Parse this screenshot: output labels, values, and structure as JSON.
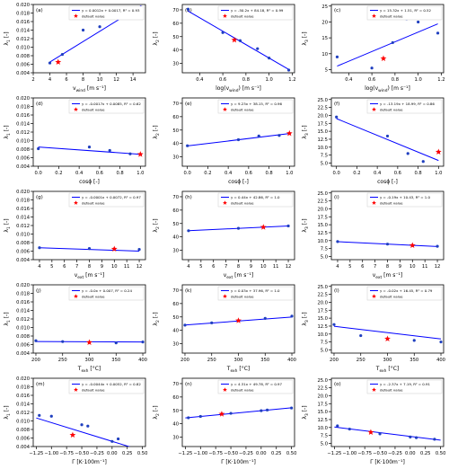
{
  "colors": {
    "points": "#1f3fbf",
    "fit": "#0000ff",
    "default": "#ff0000",
    "axis": "#000000"
  },
  "legend_default_label": "default value",
  "chart_data": [
    {
      "panel": "(a)",
      "type": "scatter",
      "xlabel": "v_wind [m s⁻¹]",
      "xlabel_main": "v",
      "xlabel_sub": "wind",
      "xlabel_unit": " [m s⁻¹]",
      "ylabel": "λ1 [-]",
      "ylabel_sub": "1",
      "xlim": [
        2,
        15.5
      ],
      "ylim": [
        0.004,
        0.02
      ],
      "xticks": [
        2,
        4,
        6,
        8,
        10,
        12,
        14
      ],
      "yticks": [
        0.004,
        0.006,
        0.008,
        0.01,
        0.012,
        0.014,
        0.016,
        0.018,
        0.02
      ],
      "yticklabels": [
        "0.004",
        "0.006",
        "0.008",
        "0.010",
        "0.012",
        "0.014",
        "0.016",
        "0.018",
        "0.020"
      ],
      "points": [
        [
          4,
          0.0063
        ],
        [
          5.5,
          0.0083
        ],
        [
          8,
          0.014
        ],
        [
          10,
          0.0148
        ],
        [
          15,
          0.0183
        ]
      ],
      "default": [
        5,
        0.0065
      ],
      "fit": {
        "x": [
          4,
          15
        ],
        "y": [
          0.00652,
          0.01972
        ]
      },
      "fit_label": "y = 0.0012x + 0.0017, R² = 0.93",
      "legend": "top"
    },
    {
      "panel": "(b)",
      "type": "scatter",
      "xlabel": "log(v_wind) [m s⁻¹]",
      "xlabel_main": "log(v",
      "xlabel_sub": "wind",
      "xlabel_unit": ") [m s⁻¹]",
      "ylabel": "λ2 [-]",
      "ylabel_sub": "2",
      "xlim": [
        0.25,
        1.22
      ],
      "ylim": [
        23,
        74
      ],
      "xticks": [
        0.4,
        0.6,
        0.8,
        1.0,
        1.2
      ],
      "yticks": [
        30,
        40,
        50,
        60,
        70
      ],
      "yticklabels": [
        "30",
        "40",
        "50",
        "60",
        "70"
      ],
      "points": [
        [
          0.3,
          70.5
        ],
        [
          0.6,
          53
        ],
        [
          0.75,
          47
        ],
        [
          0.9,
          41
        ],
        [
          1.0,
          34
        ],
        [
          1.17,
          25
        ]
      ],
      "default": [
        0.7,
        47.5
      ],
      "fit": {
        "x": [
          0.3,
          1.17
        ],
        "y": [
          69.12,
          25.45
        ]
      },
      "fit_label": "y = -50.2x + 84.18, R² = 0.99",
      "legend": "top"
    },
    {
      "panel": "(c)",
      "type": "scatter",
      "xlabel": "log(v_wind) [m s⁻¹]",
      "xlabel_main": "log(v",
      "xlabel_sub": "wind",
      "xlabel_unit": ") [m s⁻¹]",
      "ylabel": "λ3 [-]",
      "ylabel_sub": "3",
      "xlim": [
        0.25,
        1.22
      ],
      "ylim": [
        4,
        25.5
      ],
      "xticks": [
        0.4,
        0.6,
        0.8,
        1.0,
        1.2
      ],
      "yticks": [
        5,
        10,
        15,
        20,
        25
      ],
      "yticklabels": [
        "5",
        "10",
        "15",
        "20",
        "25"
      ],
      "points": [
        [
          0.3,
          9
        ],
        [
          0.6,
          5.5
        ],
        [
          0.78,
          13.5
        ],
        [
          0.9,
          21
        ],
        [
          1.0,
          20
        ],
        [
          1.17,
          16.5
        ]
      ],
      "default": [
        0.7,
        8.5
      ],
      "fit": {
        "x": [
          0.3,
          1.17
        ],
        "y": [
          6.1,
          19.41
        ]
      },
      "fit_label": "y = 15.32x + 1.51, R² = 0.52",
      "legend": "top"
    },
    {
      "panel": "(d)",
      "type": "scatter",
      "xlabel": "cosϕ [-]",
      "xlabel_main": "cosϕ [-]",
      "xlabel_sub": "",
      "xlabel_unit": "",
      "ylabel": "λ1 [-]",
      "ylabel_sub": "1",
      "xlim": [
        -0.05,
        1.05
      ],
      "ylim": [
        0.004,
        0.02
      ],
      "xticks": [
        0.0,
        0.2,
        0.4,
        0.6,
        0.8,
        1.0
      ],
      "yticks": [
        0.004,
        0.006,
        0.008,
        0.01,
        0.012,
        0.014,
        0.016,
        0.018,
        0.02
      ],
      "yticklabels": [
        "0.004",
        "0.006",
        "0.008",
        "0.010",
        "0.012",
        "0.014",
        "0.016",
        "0.018",
        "0.020"
      ],
      "points": [
        [
          0.0,
          0.0081
        ],
        [
          0.5,
          0.0085
        ],
        [
          0.7,
          0.0077
        ],
        [
          0.9,
          0.0069
        ],
        [
          1.0,
          0.0068
        ]
      ],
      "default": [
        1.0,
        0.0068
      ],
      "fit": {
        "x": [
          0.0,
          1.0
        ],
        "y": [
          0.0085,
          0.0068
        ]
      },
      "fit_label": "y = -0.0017x + 0.0085, R² = 0.62",
      "legend": "top"
    },
    {
      "panel": "(e)",
      "type": "scatter",
      "xlabel": "cosϕ [-]",
      "xlabel_main": "cosϕ [-]",
      "xlabel_sub": "",
      "xlabel_unit": "",
      "ylabel": "λ2 [-]",
      "ylabel_sub": "2",
      "xlim": [
        -0.05,
        1.05
      ],
      "ylim": [
        23,
        74
      ],
      "xticks": [
        0.0,
        0.2,
        0.4,
        0.6,
        0.8,
        1.0
      ],
      "yticks": [
        30,
        40,
        50,
        60,
        70
      ],
      "yticklabels": [
        "30",
        "40",
        "50",
        "60",
        "70"
      ],
      "points": [
        [
          0.0,
          38.3
        ],
        [
          0.5,
          42.8
        ],
        [
          0.7,
          45.6
        ],
        [
          0.9,
          46
        ],
        [
          1.0,
          47.5
        ]
      ],
      "default": [
        1.0,
        47.5
      ],
      "fit": {
        "x": [
          0.0,
          1.0
        ],
        "y": [
          38.15,
          47.38
        ]
      },
      "fit_label": "y = 9.23x + 38.15, R² = 0.96",
      "legend": "top"
    },
    {
      "panel": "(f)",
      "type": "scatter",
      "xlabel": "cosϕ [-]",
      "xlabel_main": "cosϕ [-]",
      "xlabel_sub": "",
      "xlabel_unit": "",
      "ylabel": "λ3 [-]",
      "ylabel_sub": "3",
      "xlim": [
        -0.05,
        1.05
      ],
      "ylim": [
        4,
        25.5
      ],
      "xticks": [
        0.0,
        0.2,
        0.4,
        0.6,
        0.8,
        1.0
      ],
      "yticks": [
        5.0,
        7.5,
        10.0,
        12.5,
        15.0,
        17.5,
        20.0,
        22.5,
        25.0
      ],
      "yticklabels": [
        "5.0",
        "7.5",
        "10.0",
        "12.5",
        "15.0",
        "17.5",
        "20.0",
        "22.5",
        "25.0"
      ],
      "points": [
        [
          0.0,
          19.5
        ],
        [
          0.5,
          13.5
        ],
        [
          0.7,
          8
        ],
        [
          0.85,
          5.5
        ],
        [
          1.0,
          8.5
        ]
      ],
      "default": [
        1.0,
        8.5
      ],
      "fit": {
        "x": [
          0.0,
          1.0
        ],
        "y": [
          18.99,
          5.8
        ]
      },
      "fit_label": "y = -13.19x + 18.99, R² = 0.86",
      "legend": "top"
    },
    {
      "panel": "(g)",
      "type": "scatter",
      "xlabel": "v_ext [m s⁻¹]",
      "xlabel_main": "v",
      "xlabel_sub": "ext",
      "xlabel_unit": " [m s⁻¹]",
      "ylabel": "λ1 [-]",
      "ylabel_sub": "1",
      "xlim": [
        3.5,
        12.5
      ],
      "ylim": [
        0.004,
        0.02
      ],
      "xticks": [
        4,
        5,
        6,
        7,
        8,
        9,
        10,
        11,
        12
      ],
      "yticks": [
        0.004,
        0.006,
        0.008,
        0.01,
        0.012,
        0.014,
        0.016,
        0.018,
        0.02
      ],
      "yticklabels": [
        "0.004",
        "0.006",
        "0.008",
        "0.010",
        "0.012",
        "0.014",
        "0.016",
        "0.018",
        "0.020"
      ],
      "points": [
        [
          4,
          0.0068
        ],
        [
          8,
          0.0066
        ],
        [
          10,
          0.0065
        ],
        [
          12,
          0.0064
        ]
      ],
      "default": [
        10,
        0.0065
      ],
      "fit": {
        "x": [
          4,
          12
        ],
        "y": [
          0.0068,
          0.006
        ]
      },
      "fit_label": "y = -0.0001x + 0.0072, R² = 0.97",
      "legend": "top"
    },
    {
      "panel": "(h)",
      "type": "scatter",
      "xlabel": "v_ext [m s⁻¹]",
      "xlabel_main": "v",
      "xlabel_sub": "ext",
      "xlabel_unit": " [m s⁻¹]",
      "ylabel": "λ2 [-]",
      "ylabel_sub": "2",
      "xlim": [
        3.5,
        12.5
      ],
      "ylim": [
        23,
        74
      ],
      "xticks": [
        4,
        5,
        6,
        7,
        8,
        9,
        10,
        11,
        12
      ],
      "yticks": [
        30,
        40,
        50,
        60,
        70
      ],
      "yticklabels": [
        "30",
        "40",
        "50",
        "60",
        "70"
      ],
      "points": [
        [
          4,
          44.6
        ],
        [
          8,
          46.4
        ],
        [
          10,
          47.3
        ],
        [
          12,
          48.2
        ]
      ],
      "default": [
        10,
        47.3
      ],
      "fit": {
        "x": [
          4,
          12
        ],
        "y": [
          44.62,
          48.14
        ]
      },
      "fit_label": "y = 0.44x + 42.86, R² = 1.0",
      "legend": "top"
    },
    {
      "panel": "(i)",
      "type": "scatter",
      "xlabel": "v_ext [m s⁻¹]",
      "xlabel_main": "v",
      "xlabel_sub": "ext",
      "xlabel_unit": " [m s⁻¹]",
      "ylabel": "λ3 [-]",
      "ylabel_sub": "3",
      "xlim": [
        3.5,
        12.5
      ],
      "ylim": [
        4,
        25.5
      ],
      "xticks": [
        4,
        5,
        6,
        7,
        8,
        9,
        10,
        11,
        12
      ],
      "yticks": [
        5.0,
        7.5,
        10.0,
        12.5,
        15.0,
        17.5,
        20.0,
        22.5,
        25.0
      ],
      "yticklabels": [
        "5.0",
        "7.5",
        "10.0",
        "12.5",
        "15.0",
        "17.5",
        "20.0",
        "22.5",
        "25.0"
      ],
      "points": [
        [
          4,
          9.7
        ],
        [
          8,
          8.9
        ],
        [
          10,
          8.5
        ],
        [
          12,
          8.2
        ]
      ],
      "default": [
        10,
        8.5
      ],
      "fit": {
        "x": [
          4,
          12
        ],
        "y": [
          9.67,
          8.15
        ]
      },
      "fit_label": "y = -0.19x + 10.43, R² = 1.0",
      "legend": "top"
    },
    {
      "panel": "(j)",
      "type": "scatter",
      "xlabel": "T_exh [°C]",
      "xlabel_main": "T",
      "xlabel_sub": "exh",
      "xlabel_unit": " [°C]",
      "ylabel": "λ1 [-]",
      "ylabel_sub": "1",
      "xlim": [
        195,
        405
      ],
      "ylim": [
        0.004,
        0.02
      ],
      "xticks": [
        200,
        250,
        300,
        350,
        400
      ],
      "yticks": [
        0.004,
        0.006,
        0.008,
        0.01,
        0.012,
        0.014,
        0.016,
        0.018,
        0.02
      ],
      "yticklabels": [
        "0.004",
        "0.006",
        "0.008",
        "0.010",
        "0.012",
        "0.014",
        "0.016",
        "0.018",
        "0.020"
      ],
      "points": [
        [
          200,
          0.0069
        ],
        [
          250,
          0.0067
        ],
        [
          300,
          0.0065
        ],
        [
          350,
          0.0064
        ],
        [
          400,
          0.0066
        ]
      ],
      "default": [
        300,
        0.0065
      ],
      "fit": {
        "x": [
          200,
          400
        ],
        "y": [
          0.0067,
          0.0066
        ]
      },
      "fit_label": "y = -0.0x + 0.007, R² = 0.24",
      "legend": "top"
    },
    {
      "panel": "(k)",
      "type": "scatter",
      "xlabel": "T_exh [°C]",
      "xlabel_main": "T",
      "xlabel_sub": "exh",
      "xlabel_unit": " [°C]",
      "ylabel": "λ2 [-]",
      "ylabel_sub": "2",
      "xlim": [
        195,
        405
      ],
      "ylim": [
        23,
        74
      ],
      "xticks": [
        200,
        250,
        300,
        350,
        400
      ],
      "yticks": [
        30,
        40,
        50,
        60,
        70
      ],
      "yticklabels": [
        "30",
        "40",
        "50",
        "60",
        "70"
      ],
      "points": [
        [
          200,
          43.9
        ],
        [
          250,
          45.6
        ],
        [
          300,
          47.3
        ],
        [
          350,
          48.9
        ],
        [
          400,
          50.6
        ]
      ],
      "default": [
        300,
        47.3
      ],
      "fit": {
        "x": [
          200,
          400
        ],
        "y": [
          43.96,
          49.96
        ]
      },
      "fit_label": "y = 0.03x + 37.96, R² = 1.0",
      "legend": "top"
    },
    {
      "panel": "(l)",
      "type": "scatter",
      "xlabel": "T_exh [°C]",
      "xlabel_main": "T",
      "xlabel_sub": "exh",
      "xlabel_unit": " [°C]",
      "ylabel": "λ3 [-]",
      "ylabel_sub": "3",
      "xlim": [
        195,
        405
      ],
      "ylim": [
        4,
        25.5
      ],
      "xticks": [
        200,
        250,
        300,
        350,
        400
      ],
      "yticks": [
        5.0,
        7.5,
        10.0,
        12.5,
        15.0,
        17.5,
        20.0,
        22.5,
        25.0
      ],
      "yticklabels": [
        "5.0",
        "7.5",
        "10.0",
        "12.5",
        "15.0",
        "17.5",
        "20.0",
        "22.5",
        "25.0"
      ],
      "points": [
        [
          200,
          13
        ],
        [
          250,
          9.5
        ],
        [
          300,
          8.5
        ],
        [
          350,
          8
        ],
        [
          400,
          7.5
        ]
      ],
      "default": [
        300,
        8.5
      ],
      "fit": {
        "x": [
          200,
          400
        ],
        "y": [
          12.45,
          8.45
        ]
      },
      "fit_label": "y = -0.02x + 16.45, R² = 0.79",
      "legend": "top"
    },
    {
      "panel": "(m)",
      "type": "scatter",
      "xlabel": "Γ [K·100m⁻¹]",
      "xlabel_main": "Γ [K·100m⁻¹]",
      "xlabel_sub": "",
      "xlabel_unit": "",
      "ylabel": "λ1 [-]",
      "ylabel_sub": "1",
      "xlim": [
        -1.3,
        0.55
      ],
      "ylim": [
        0.004,
        0.02
      ],
      "xticks": [
        -1.25,
        -1.0,
        -0.75,
        -0.5,
        -0.25,
        0.0,
        0.25,
        0.5
      ],
      "yticks": [
        0.004,
        0.006,
        0.008,
        0.01,
        0.012,
        0.014,
        0.016,
        0.018,
        0.02
      ],
      "yticklabels": [
        "0.004",
        "0.006",
        "0.008",
        "0.010",
        "0.012",
        "0.014",
        "0.016",
        "0.018",
        "0.020"
      ],
      "points": [
        [
          -1.2,
          0.0113
        ],
        [
          -1.0,
          0.0111
        ],
        [
          -0.65,
          0.0067
        ],
        [
          -0.5,
          0.0091
        ],
        [
          -0.4,
          0.0088
        ],
        [
          0.0,
          0.0052
        ],
        [
          0.1,
          0.0058
        ]
      ],
      "default": [
        -0.65,
        0.0067
      ],
      "fit": {
        "x": [
          -1.25,
          0.3
        ],
        "y": [
          0.0107,
          0.0039
        ]
      },
      "fit_label": "y = -0.0044x + 0.0052, R² = 0.82",
      "legend": "top"
    },
    {
      "panel": "(n)",
      "type": "scatter",
      "xlabel": "Γ [K·100m⁻¹]",
      "xlabel_main": "Γ [K·100m⁻¹]",
      "xlabel_sub": "",
      "xlabel_unit": "",
      "ylabel": "λ2 [-]",
      "ylabel_sub": "2",
      "xlim": [
        -1.3,
        0.55
      ],
      "ylim": [
        23,
        74
      ],
      "xticks": [
        -1.25,
        -1.0,
        -0.75,
        -0.5,
        -0.25,
        0.0,
        0.25,
        0.5
      ],
      "yticks": [
        30,
        40,
        50,
        60,
        70
      ],
      "yticklabels": [
        "30",
        "40",
        "50",
        "60",
        "70"
      ],
      "points": [
        [
          -1.2,
          44.5
        ],
        [
          -1.0,
          45.5
        ],
        [
          -0.65,
          47.3
        ],
        [
          -0.5,
          47.8
        ],
        [
          0.0,
          49.8
        ],
        [
          0.1,
          50.3
        ],
        [
          0.5,
          51.8
        ]
      ],
      "default": [
        -0.65,
        47.3
      ],
      "fit": {
        "x": [
          -1.25,
          0.5
        ],
        "y": [
          44.39,
          51.94
        ]
      },
      "fit_label": "y = 4.31x + 49.78, R² = 0.97",
      "legend": "top"
    },
    {
      "panel": "(o)",
      "type": "scatter",
      "xlabel": "Γ [K·100m⁻¹]",
      "xlabel_main": "Γ [K·100m⁻¹]",
      "xlabel_sub": "",
      "xlabel_unit": "",
      "ylabel": "λ3 [-]",
      "ylabel_sub": "3",
      "xlim": [
        -1.3,
        0.55
      ],
      "ylim": [
        4,
        25.5
      ],
      "xticks": [
        -1.25,
        -1.0,
        -0.75,
        -0.5,
        -0.25,
        0.0,
        0.25,
        0.5
      ],
      "yticks": [
        5.0,
        7.5,
        10.0,
        12.5,
        15.0,
        17.5,
        20.0,
        22.5,
        25.0
      ],
      "yticklabels": [
        "5.0",
        "7.5",
        "10.0",
        "12.5",
        "15.0",
        "17.5",
        "20.0",
        "22.5",
        "25.0"
      ],
      "points": [
        [
          -1.2,
          10.5
        ],
        [
          -1.0,
          9.5
        ],
        [
          -0.65,
          8.5
        ],
        [
          -0.5,
          8
        ],
        [
          0.0,
          7
        ],
        [
          0.1,
          6.8
        ],
        [
          0.4,
          6.3
        ]
      ],
      "default": [
        -0.65,
        8.5
      ],
      "fit": {
        "x": [
          -1.25,
          0.5
        ],
        "y": [
          10.15,
          6.0
        ]
      },
      "fit_label": "y = -2.37x + 7.19, R² = 0.91",
      "legend": "top"
    }
  ]
}
